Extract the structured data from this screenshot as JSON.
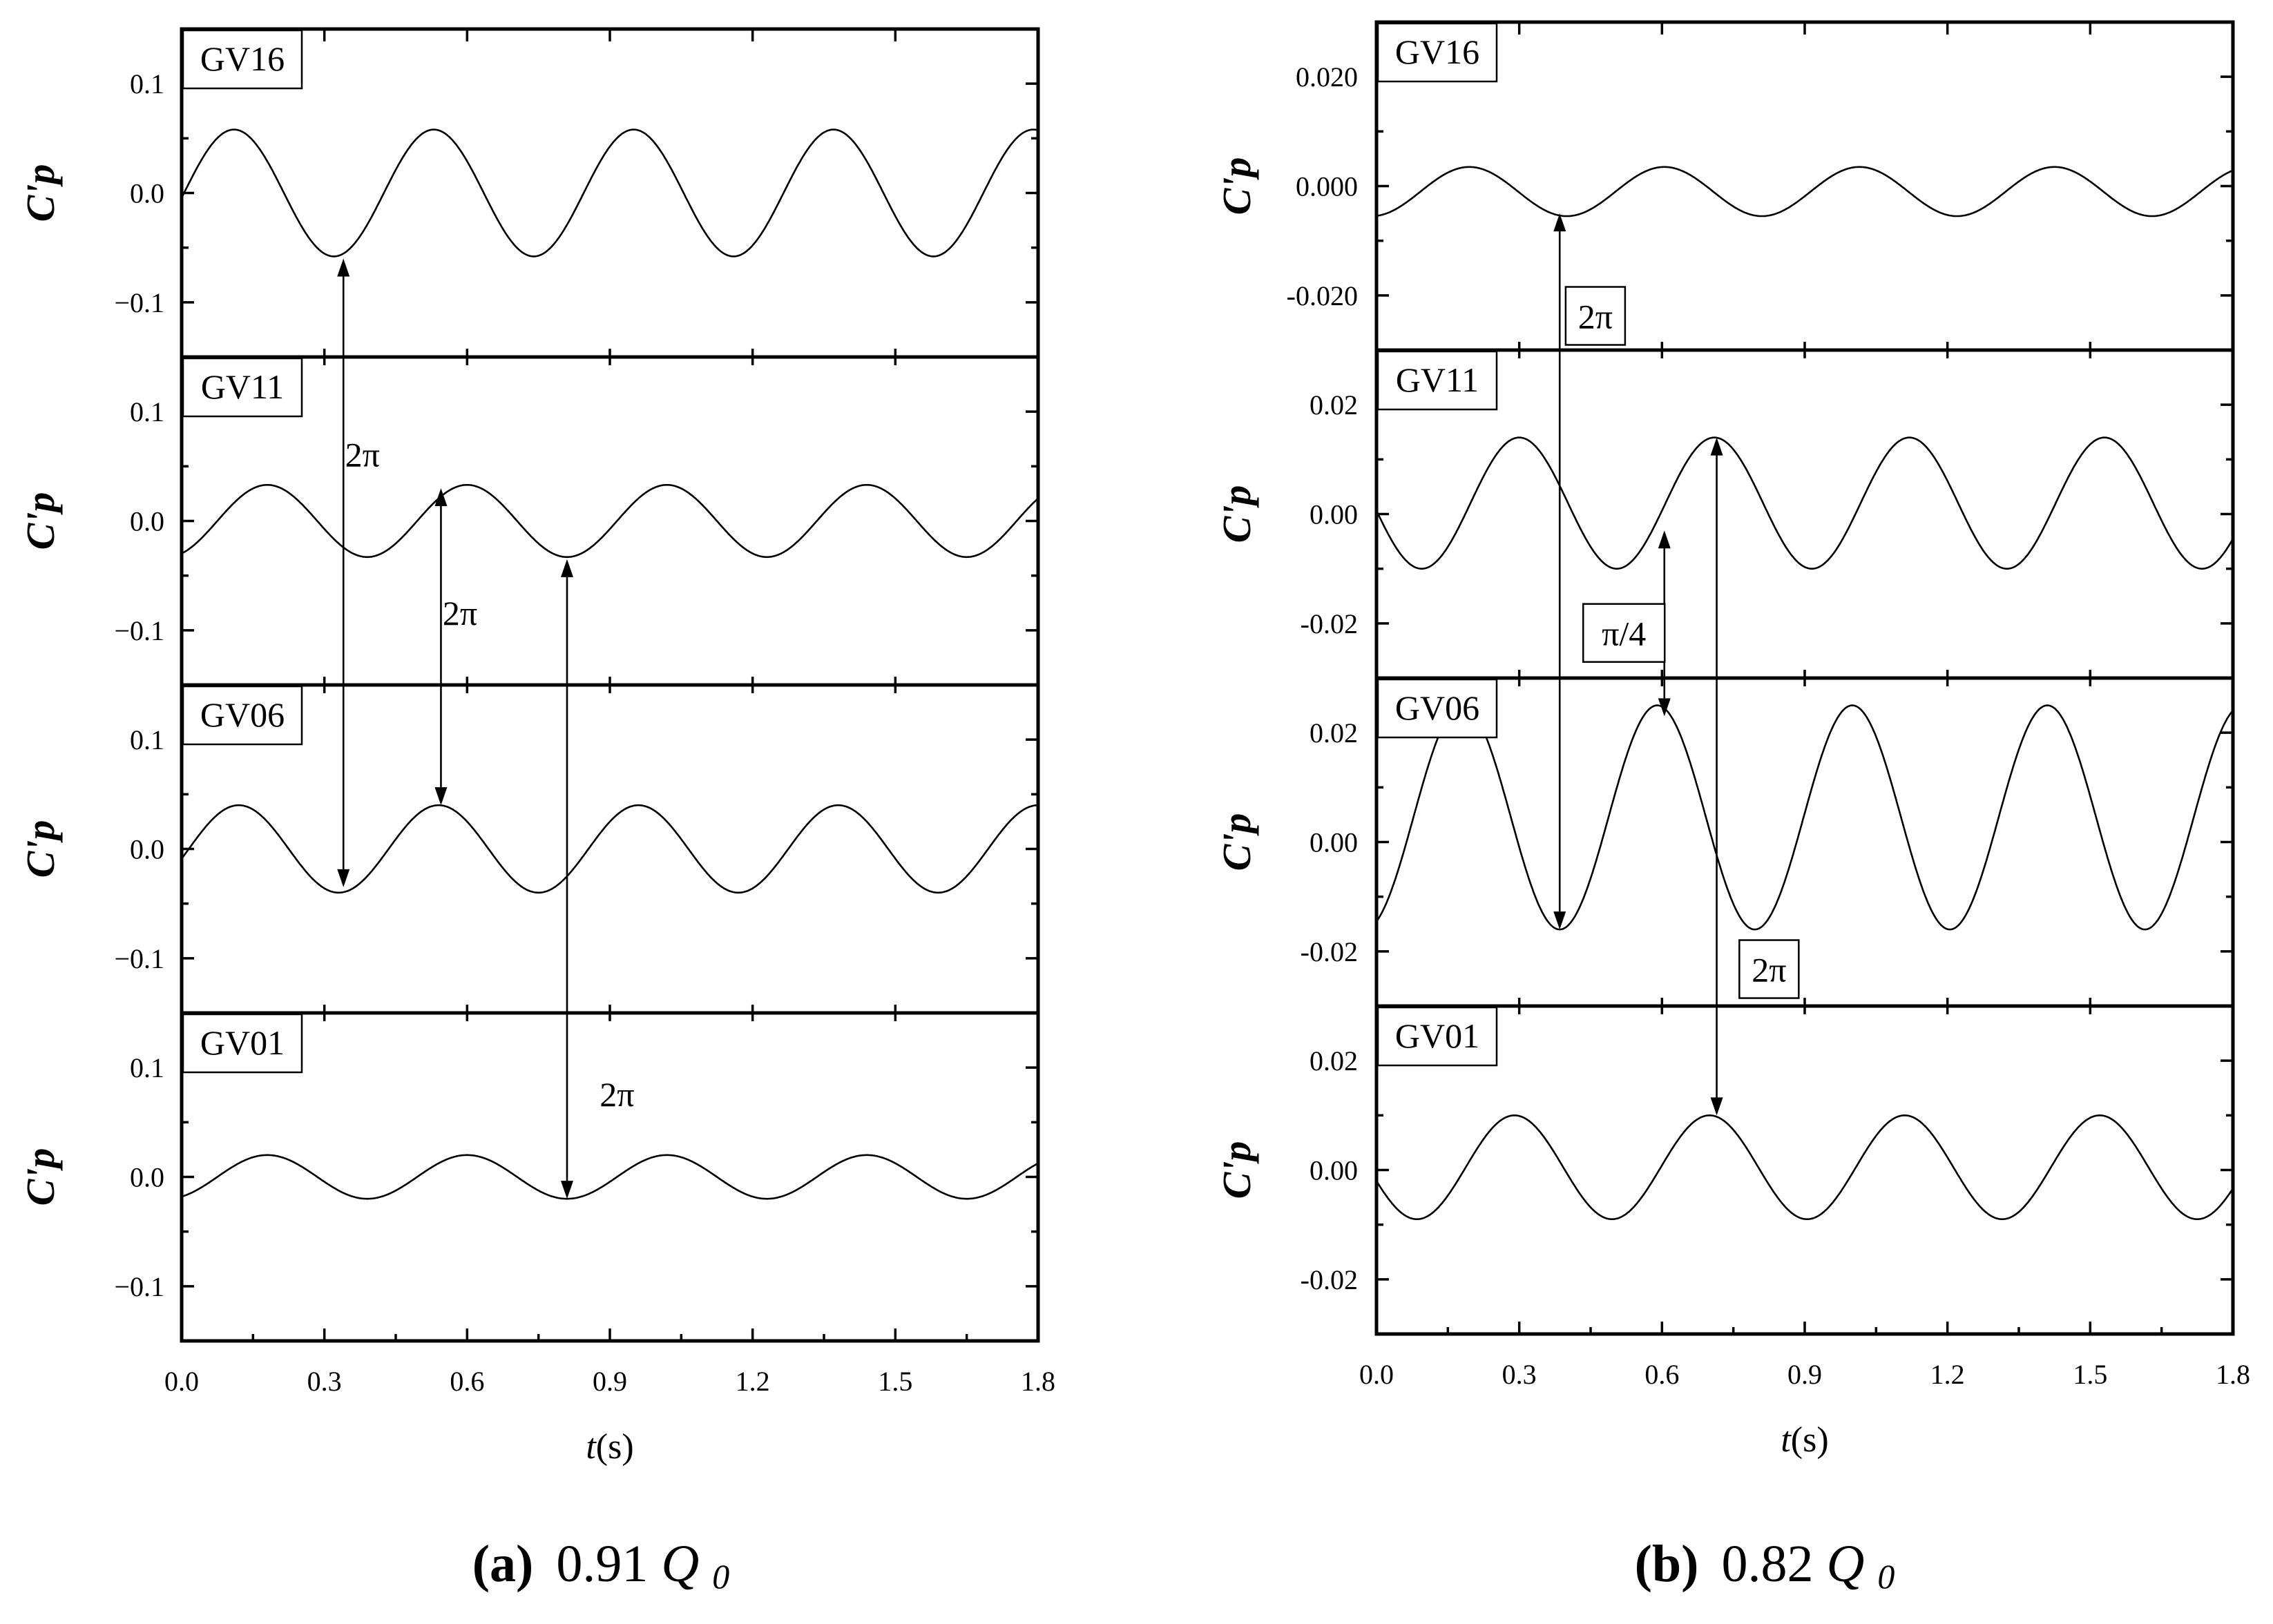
{
  "figure": {
    "captions": [
      {
        "letter": "(a)",
        "text": "0.91",
        "var": "Q",
        "sub": "0"
      },
      {
        "letter": "(b)",
        "text": "0.82",
        "var": "Q",
        "sub": "0"
      }
    ]
  },
  "chart_data": [
    {
      "type": "line",
      "id": "a",
      "xlabel": "t(s)",
      "xlim": [
        0,
        1.8
      ],
      "x_ticks": [
        "0.0",
        "0.3",
        "0.6",
        "0.9",
        "1.2",
        "1.5",
        "1.8"
      ],
      "grid": false,
      "panels": [
        {
          "name": "GV16",
          "ylabel": "C'p",
          "ylim": [
            -0.15,
            0.15
          ],
          "y_ticks": [
            -0.1,
            0.0,
            0.1
          ],
          "y_tick_labels": [
            "−0.1",
            "0.0",
            "0.1"
          ],
          "series": [
            {
              "amplitude": 0.058,
              "offset": 0.0,
              "period": 0.42,
              "peak_t": 0.11
            }
          ]
        },
        {
          "name": "GV11",
          "ylabel": "C'p",
          "ylim": [
            -0.15,
            0.15
          ],
          "y_ticks": [
            -0.1,
            0.0,
            0.1
          ],
          "y_tick_labels": [
            "−0.1",
            "0.0",
            "0.1"
          ],
          "series": [
            {
              "amplitude": 0.033,
              "offset": 0.0,
              "period": 0.42,
              "peak_t": 0.18
            }
          ]
        },
        {
          "name": "GV06",
          "ylabel": "C'p",
          "ylim": [
            -0.15,
            0.15
          ],
          "y_ticks": [
            -0.1,
            0.0,
            0.1
          ],
          "y_tick_labels": [
            "−0.1",
            "0.0",
            "0.1"
          ],
          "series": [
            {
              "amplitude": 0.04,
              "offset": 0.0,
              "period": 0.42,
              "peak_t": 0.12
            }
          ]
        },
        {
          "name": "GV01",
          "ylabel": "C'p",
          "ylim": [
            -0.15,
            0.15
          ],
          "y_ticks": [
            -0.1,
            0.0,
            0.1
          ],
          "y_tick_labels": [
            "−0.1",
            "0.0",
            "0.1"
          ],
          "series": [
            {
              "amplitude": 0.02,
              "offset": 0.0,
              "period": 0.42,
              "peak_t": 0.18
            }
          ]
        }
      ],
      "annotations": [
        {
          "text": "2π",
          "boxed": false,
          "x1": 0.34,
          "y1": -0.06,
          "panel1": 0,
          "x2": 0.34,
          "y2": -0.035,
          "panel2": 2,
          "label_x": 0.38,
          "label_y": 0.06,
          "label_panel": 1
        },
        {
          "text": "2π",
          "boxed": false,
          "x1": 0.545,
          "y1": 0.03,
          "panel1": 1,
          "x2": 0.545,
          "y2": 0.04,
          "panel2": 2,
          "label_x": 0.585,
          "label_y": -0.085,
          "label_panel": 1
        },
        {
          "text": "2π",
          "boxed": false,
          "x1": 0.81,
          "y1": -0.035,
          "panel1": 1,
          "x2": 0.81,
          "y2": -0.02,
          "panel2": 3,
          "label_x": 0.915,
          "label_y": 0.075,
          "label_panel": 3
        }
      ]
    },
    {
      "type": "line",
      "id": "b",
      "xlabel": "t(s)",
      "xlim": [
        0,
        1.8
      ],
      "x_ticks": [
        "0.0",
        "0.3",
        "0.6",
        "0.9",
        "1.2",
        "1.5",
        "1.8"
      ],
      "grid": false,
      "panels": [
        {
          "name": "GV16",
          "ylabel": "C'p",
          "ylim": [
            -0.03,
            0.03
          ],
          "y_ticks": [
            -0.02,
            0.0,
            0.02
          ],
          "y_tick_labels": [
            "-0.020",
            "0.000",
            "0.020"
          ],
          "series": [
            {
              "amplitude": 0.0045,
              "offset": -0.001,
              "period": 0.41,
              "peak_t": 0.195
            }
          ]
        },
        {
          "name": "GV11",
          "ylabel": "C'p",
          "ylim": [
            -0.03,
            0.03
          ],
          "y_ticks": [
            -0.02,
            0.0,
            0.02
          ],
          "y_tick_labels": [
            "-0.02",
            "0.00",
            "0.02"
          ],
          "series": [
            {
              "amplitude": 0.012,
              "offset": 0.002,
              "period": 0.41,
              "peak_t": 0.3
            }
          ]
        },
        {
          "name": "GV06",
          "ylabel": "C'p",
          "ylim": [
            -0.03,
            0.03
          ],
          "y_ticks": [
            -0.02,
            0.0,
            0.02
          ],
          "y_tick_labels": [
            "-0.02",
            "0.00",
            "0.02"
          ],
          "series": [
            {
              "amplitude": 0.0205,
              "offset": 0.0045,
              "period": 0.41,
              "peak_t": 0.18
            }
          ]
        },
        {
          "name": "GV01",
          "ylabel": "C'p",
          "ylim": [
            -0.03,
            0.03
          ],
          "y_ticks": [
            -0.02,
            0.0,
            0.02
          ],
          "y_tick_labels": [
            "-0.02",
            "0.00",
            "0.02"
          ],
          "series": [
            {
              "amplitude": 0.0095,
              "offset": 0.0005,
              "period": 0.41,
              "peak_t": 0.29
            }
          ]
        }
      ],
      "annotations": [
        {
          "text": "2π",
          "boxed": true,
          "x1": 0.385,
          "y1": -0.005,
          "panel1": 0,
          "x2": 0.385,
          "y2": -0.016,
          "panel2": 2,
          "label_x": 0.46,
          "label_y": -0.024,
          "label_panel": 0
        },
        {
          "text": "π/4",
          "boxed": true,
          "x1": 0.605,
          "y1": -0.003,
          "panel1": 1,
          "x2": 0.605,
          "y2": 0.023,
          "panel2": 2,
          "label_x": 0.52,
          "label_y": -0.022,
          "label_panel": 1
        },
        {
          "text": "2π",
          "boxed": true,
          "x1": 0.715,
          "y1": 0.014,
          "panel1": 1,
          "x2": 0.715,
          "y2": 0.01,
          "panel2": 3,
          "label_x": 0.825,
          "label_y": -0.0235,
          "label_panel": 2
        }
      ]
    }
  ]
}
